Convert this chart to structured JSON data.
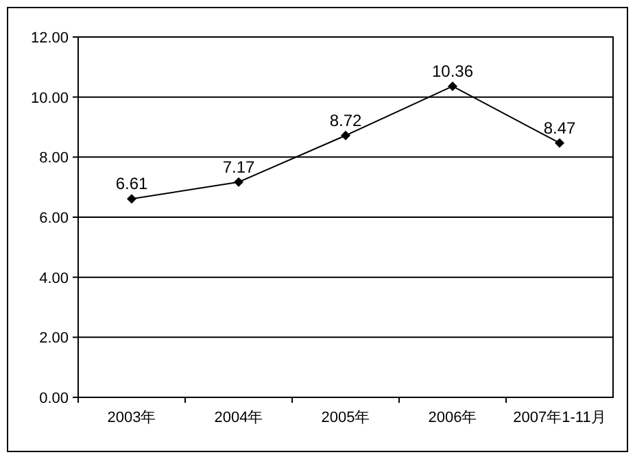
{
  "chart_data": {
    "type": "line",
    "categories": [
      "2003年",
      "2004年",
      "2005年",
      "2006年",
      "2007年1-11月"
    ],
    "series": [
      {
        "color": "#000000",
        "values": [
          6.61,
          7.17,
          8.72,
          10.36,
          8.47
        ]
      }
    ],
    "ylim": [
      0,
      12
    ],
    "yticks": [
      {
        "value": 0,
        "label": "0.00"
      },
      {
        "value": 2,
        "label": "2.00"
      },
      {
        "value": 4,
        "label": "4.00"
      },
      {
        "value": 6,
        "label": "6.00"
      },
      {
        "value": 8,
        "label": "8.00"
      },
      {
        "value": 10,
        "label": "10.00"
      },
      {
        "value": 12,
        "label": "12.00"
      }
    ],
    "grid": "y",
    "marker": "diamond",
    "line_style": "solid",
    "data_labels": true
  }
}
